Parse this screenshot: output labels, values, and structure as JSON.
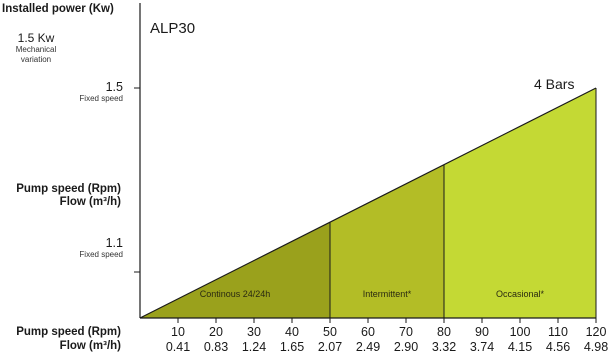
{
  "header": {
    "installed_power_label": "Installed power (Kw)",
    "mechanical_value": "1.5 Kw",
    "mechanical_note": "Mechanical variation"
  },
  "left_axis": {
    "upper_value": "1.5",
    "upper_note": "Fixed speed",
    "lower_value": "1.1",
    "lower_note": "Fixed speed",
    "mid_label_line1": "Pump speed (Rpm)",
    "mid_label_line2": "Flow (m³/h)",
    "bottom_label_line1": "Pump speed (Rpm)",
    "bottom_label_line2": "Flow (m³/h)"
  },
  "chart_data": {
    "type": "area",
    "title": "ALP30",
    "annotation": "4 Bars",
    "x": {
      "rpm": [
        10,
        20,
        30,
        40,
        50,
        60,
        70,
        80,
        90,
        100,
        110,
        120
      ],
      "flow": [
        "0.41",
        "0.83",
        "1.24",
        "1.65",
        "2.07",
        "2.49",
        "2.90",
        "3.32",
        "3.74",
        "4.15",
        "4.56",
        "4.98"
      ],
      "range": [
        0,
        120
      ]
    },
    "y_ticks": [
      1.1,
      1.5
    ],
    "ylim": [
      1.0,
      1.5
    ],
    "line": {
      "x": [
        0,
        120
      ],
      "y": [
        1.0,
        1.5
      ]
    },
    "regions": [
      {
        "label": "Continous 24/24h",
        "x_from": 0,
        "x_to": 50,
        "color": "#9aa11c"
      },
      {
        "label": "Intermittent*",
        "x_from": 50,
        "x_to": 80,
        "color": "#b3bd26"
      },
      {
        "label": "Occasional*",
        "x_from": 80,
        "x_to": 120,
        "color": "#c4d934"
      }
    ]
  }
}
